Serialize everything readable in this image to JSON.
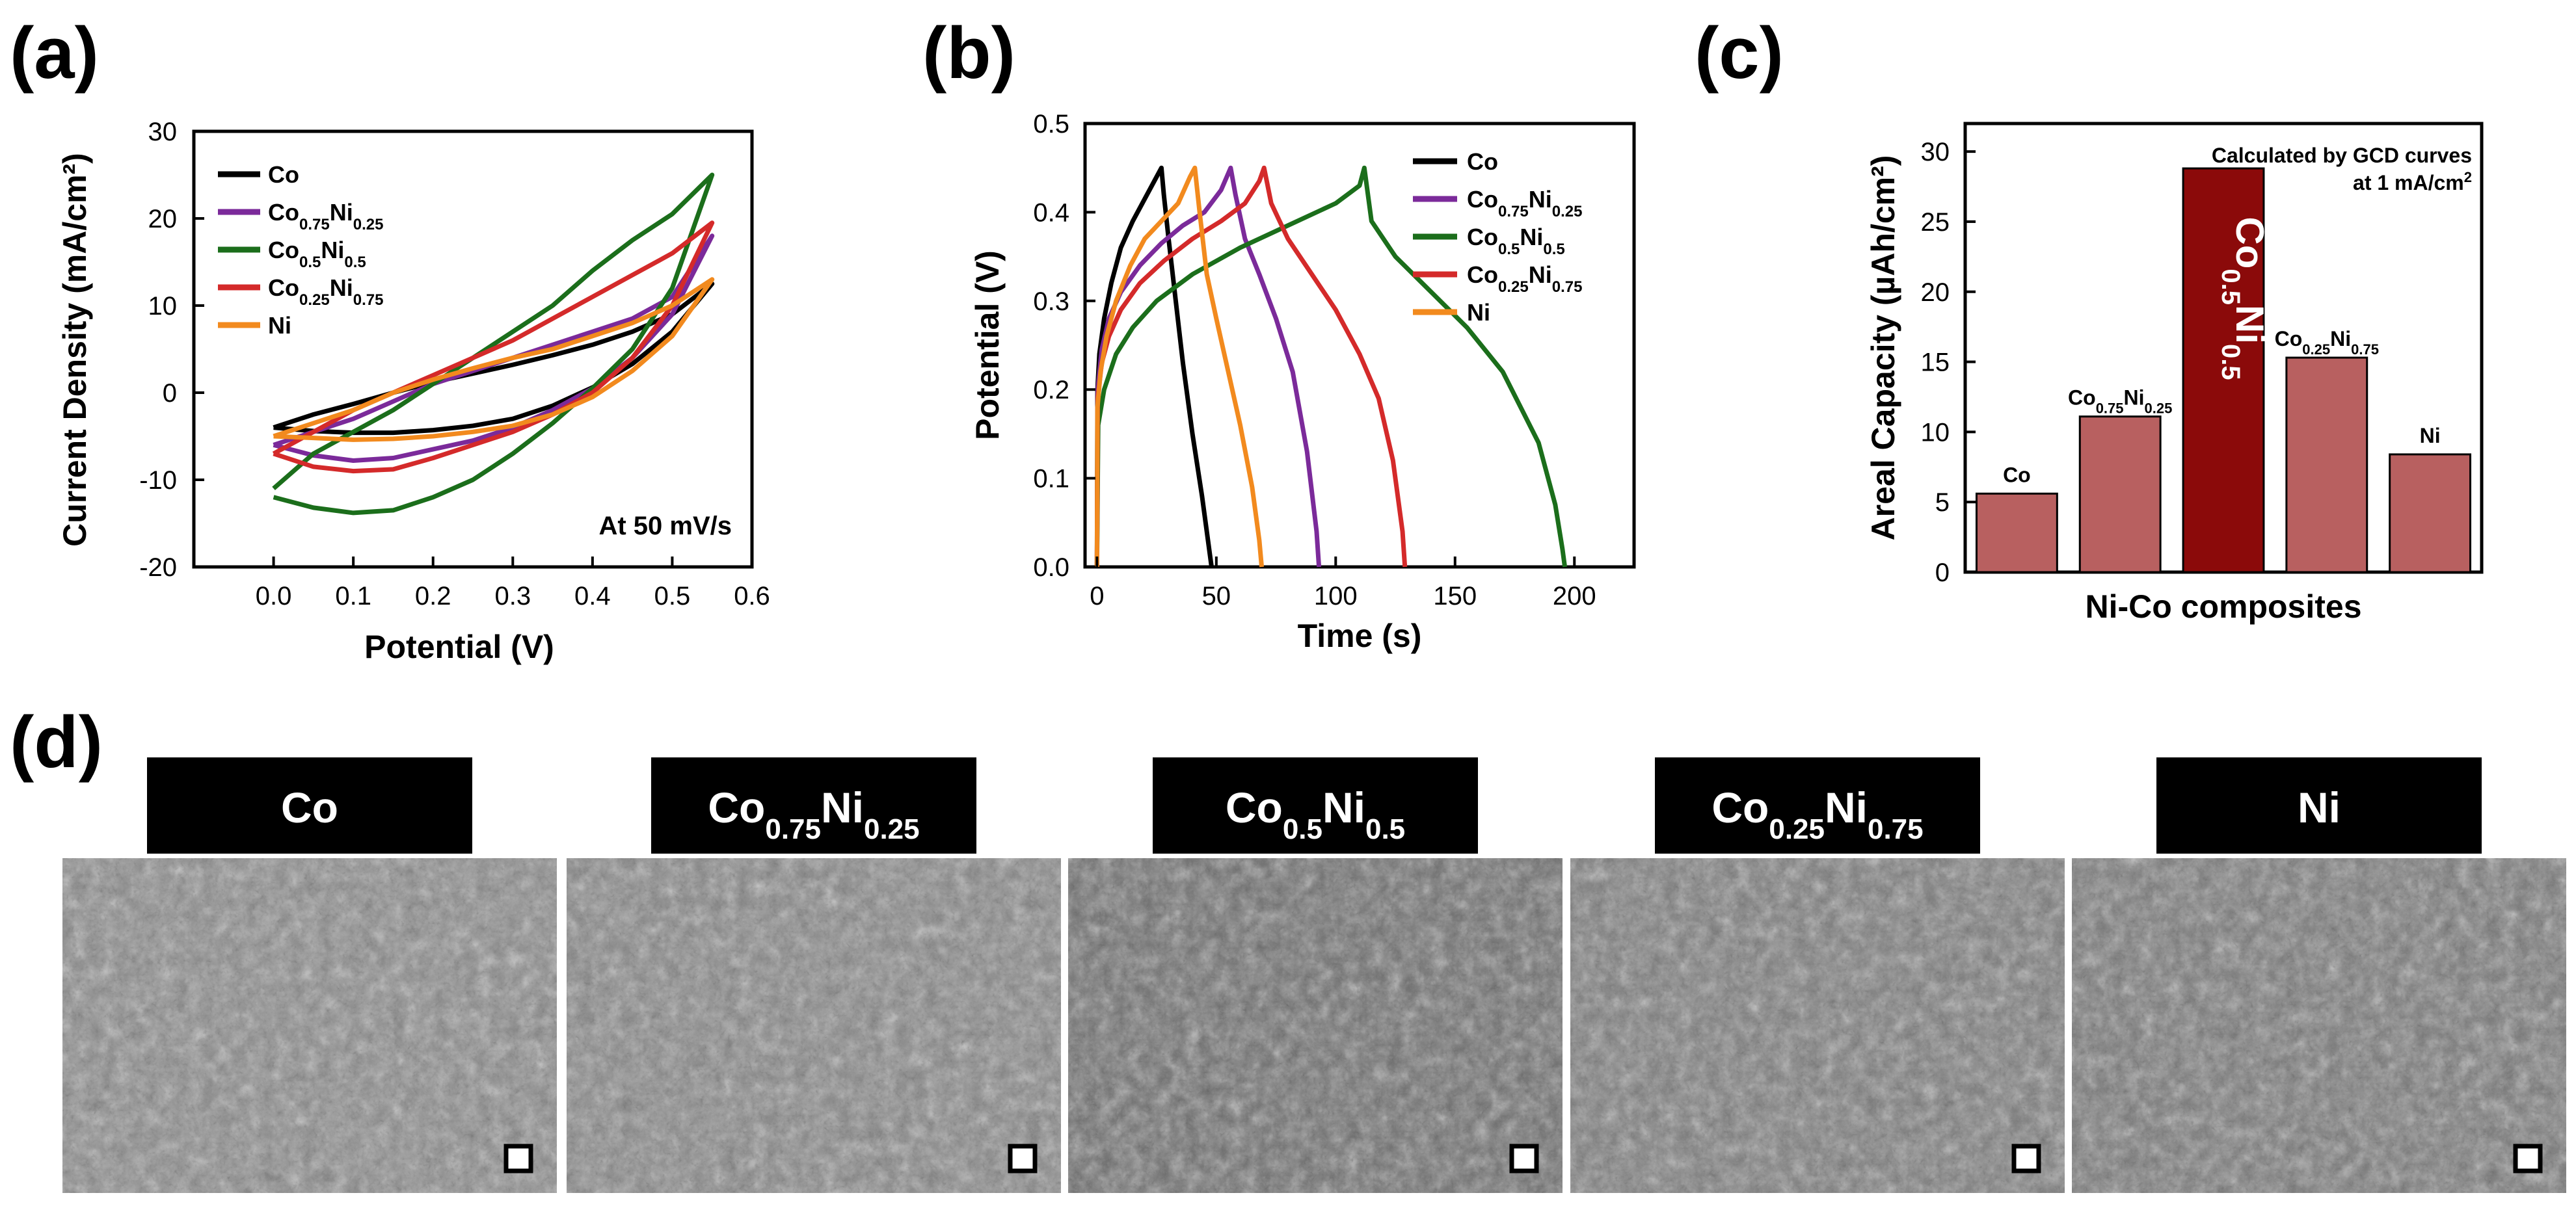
{
  "panels": {
    "a": "(a)",
    "b": "(b)",
    "c": "(c)",
    "d": "(d)"
  },
  "colors": {
    "Co": "#000000",
    "Co0.75Ni0.25": "#7B2A9A",
    "Co0.5Ni0.5": "#1B6E1B",
    "Co0.25Ni0.75": "#D42A2A",
    "Ni": "#F28A1E",
    "bar": "#B86060",
    "bar_highlight": "#8B0A0A",
    "label_box": "#000000",
    "micrograph_base": "#8C8C8C"
  },
  "chart_data": [
    {
      "panel": "a",
      "type": "line",
      "xlabel": "Potential (V)",
      "ylabel": "Current Density (mA/cm²)",
      "xlim": [
        -0.1,
        0.6
      ],
      "ylim": [
        -20,
        30
      ],
      "xticks": [
        0.0,
        0.1,
        0.2,
        0.3,
        0.4,
        0.5,
        0.6
      ],
      "yticks": [
        -20,
        -10,
        0,
        10,
        20,
        30
      ],
      "xtick_labels": [
        "0.0",
        "0.1",
        "0.2",
        "0.3",
        "0.4",
        "0.5",
        "0.6"
      ],
      "ytick_labels": [
        "-20",
        "-10",
        "0",
        "10",
        "20",
        "30"
      ],
      "annotation": "At 50 mV/s",
      "legend_position": "top-left",
      "series": [
        {
          "key": "Co",
          "name": "Co",
          "name_base": "Co",
          "name_sub1": "",
          "name_mid": "",
          "name_sub2": "",
          "x": [
            0.0,
            0.05,
            0.1,
            0.15,
            0.2,
            0.25,
            0.3,
            0.35,
            0.4,
            0.45,
            0.5,
            0.55,
            0.55,
            0.5,
            0.45,
            0.4,
            0.35,
            0.3,
            0.25,
            0.2,
            0.15,
            0.1,
            0.05,
            0.0
          ],
          "y": [
            -4,
            -2.5,
            -1.3,
            0,
            1.2,
            2.2,
            3.2,
            4.3,
            5.5,
            7,
            9,
            12.5,
            12.5,
            7,
            3.3,
            0.6,
            -1.5,
            -3,
            -3.8,
            -4.3,
            -4.6,
            -4.6,
            -4.4,
            -4
          ]
        },
        {
          "key": "Co0.75Ni0.25",
          "name": "Co0.75Ni0.25",
          "name_base": "Co",
          "name_sub1": "0.75",
          "name_mid": "Ni",
          "name_sub2": "0.25",
          "x": [
            0.0,
            0.05,
            0.1,
            0.15,
            0.2,
            0.25,
            0.3,
            0.35,
            0.4,
            0.45,
            0.5,
            0.55,
            0.55,
            0.5,
            0.45,
            0.4,
            0.35,
            0.3,
            0.25,
            0.2,
            0.15,
            0.1,
            0.05,
            0.0
          ],
          "y": [
            -6,
            -4.5,
            -3,
            -1,
            1,
            2.5,
            4,
            5.5,
            7,
            8.5,
            11,
            18,
            18,
            9,
            4,
            0.5,
            -2,
            -4,
            -5.5,
            -6.5,
            -7.5,
            -7.8,
            -7.2,
            -6
          ]
        },
        {
          "key": "Co0.5Ni0.5",
          "name": "Co0.5Ni0.5",
          "name_base": "Co",
          "name_sub1": "0.5",
          "name_mid": "Ni",
          "name_sub2": "0.5",
          "x": [
            0.0,
            0.05,
            0.1,
            0.15,
            0.2,
            0.25,
            0.3,
            0.35,
            0.4,
            0.45,
            0.5,
            0.55,
            0.55,
            0.5,
            0.45,
            0.4,
            0.35,
            0.3,
            0.25,
            0.2,
            0.15,
            0.1,
            0.05,
            0.0
          ],
          "y": [
            -11,
            -7,
            -4.5,
            -2,
            1,
            4,
            7,
            10,
            14,
            17.5,
            20.5,
            25,
            25,
            12,
            5,
            0.5,
            -3.5,
            -7,
            -10,
            -12,
            -13.5,
            -13.8,
            -13.2,
            -12
          ]
        },
        {
          "key": "Co0.25Ni0.75",
          "name": "Co0.25Ni0.75",
          "name_base": "Co",
          "name_sub1": "0.25",
          "name_mid": "Ni",
          "name_sub2": "0.75",
          "x": [
            0.0,
            0.05,
            0.1,
            0.15,
            0.2,
            0.25,
            0.3,
            0.35,
            0.4,
            0.45,
            0.5,
            0.55,
            0.55,
            0.5,
            0.45,
            0.4,
            0.35,
            0.3,
            0.25,
            0.2,
            0.15,
            0.1,
            0.05,
            0.0
          ],
          "y": [
            -7,
            -4.5,
            -2,
            0,
            2,
            4,
            6,
            8.5,
            11,
            13.5,
            16,
            19.5,
            19.5,
            10,
            4,
            0,
            -2.5,
            -4.5,
            -6,
            -7.5,
            -8.8,
            -9,
            -8.5,
            -7
          ]
        },
        {
          "key": "Ni",
          "name": "Ni",
          "name_base": "Ni",
          "name_sub1": "",
          "name_mid": "",
          "name_sub2": "",
          "x": [
            0.0,
            0.05,
            0.1,
            0.15,
            0.2,
            0.25,
            0.3,
            0.35,
            0.4,
            0.45,
            0.5,
            0.55,
            0.55,
            0.5,
            0.45,
            0.4,
            0.35,
            0.3,
            0.25,
            0.2,
            0.15,
            0.1,
            0.05,
            0.0
          ],
          "y": [
            -5,
            -3.5,
            -2,
            0,
            1.5,
            2.8,
            4,
            5,
            6.5,
            8,
            10,
            13,
            13,
            6.5,
            2.5,
            -0.5,
            -2.5,
            -3.8,
            -4.5,
            -5,
            -5.3,
            -5.4,
            -5.2,
            -5
          ]
        }
      ]
    },
    {
      "panel": "b",
      "type": "line",
      "xlabel": "Time (s)",
      "ylabel": "Potential (V)",
      "xlim": [
        -5,
        225
      ],
      "ylim": [
        0.0,
        0.5
      ],
      "xticks": [
        0,
        50,
        100,
        150,
        200
      ],
      "yticks": [
        0.0,
        0.1,
        0.2,
        0.3,
        0.4,
        0.5
      ],
      "xtick_labels": [
        "0",
        "50",
        "100",
        "150",
        "200"
      ],
      "ytick_labels": [
        "0.0",
        "0.1",
        "0.2",
        "0.3",
        "0.4",
        "0.5"
      ],
      "legend_position": "top-right",
      "series": [
        {
          "key": "Co",
          "name": "Co",
          "name_base": "Co",
          "name_sub1": "",
          "name_mid": "",
          "name_sub2": "",
          "x": [
            0,
            0.2,
            1,
            3,
            6,
            10,
            15,
            20,
            25,
            27,
            28,
            30,
            33,
            36,
            40,
            44,
            48
          ],
          "y": [
            0,
            0.2,
            0.24,
            0.28,
            0.32,
            0.36,
            0.39,
            0.415,
            0.44,
            0.45,
            0.42,
            0.37,
            0.3,
            0.23,
            0.15,
            0.08,
            0.0
          ]
        },
        {
          "key": "Co0.75Ni0.25",
          "name": "Co0.75Ni0.25",
          "name_base": "Co",
          "name_sub1": "0.75",
          "name_mid": "Ni",
          "name_sub2": "0.25",
          "x": [
            0,
            0.3,
            2,
            5,
            10,
            18,
            27,
            36,
            45,
            52,
            56,
            58,
            62,
            68,
            75,
            82,
            88,
            92,
            93
          ],
          "y": [
            0,
            0.2,
            0.245,
            0.28,
            0.31,
            0.34,
            0.365,
            0.385,
            0.4,
            0.425,
            0.45,
            0.42,
            0.37,
            0.33,
            0.28,
            0.22,
            0.13,
            0.04,
            0.0
          ]
        },
        {
          "key": "Co0.5Ni0.5",
          "name": "Co0.5Ni0.5",
          "name_base": "Co",
          "name_sub1": "0.5",
          "name_mid": "Ni",
          "name_sub2": "0.5",
          "x": [
            0,
            0.5,
            3,
            8,
            15,
            25,
            40,
            60,
            80,
            100,
            110,
            112,
            115,
            125,
            140,
            155,
            170,
            185,
            192,
            195,
            196
          ],
          "y": [
            0,
            0.16,
            0.2,
            0.24,
            0.27,
            0.3,
            0.33,
            0.36,
            0.385,
            0.41,
            0.43,
            0.45,
            0.39,
            0.35,
            0.31,
            0.27,
            0.22,
            0.14,
            0.07,
            0.02,
            0.0
          ]
        },
        {
          "key": "Co0.25Ni0.75",
          "name": "Co0.25Ni0.75",
          "name_base": "Co",
          "name_sub1": "0.25",
          "name_mid": "Ni",
          "name_sub2": "0.75",
          "x": [
            0,
            0.3,
            2,
            5,
            10,
            18,
            28,
            40,
            52,
            62,
            68,
            70,
            73,
            80,
            90,
            100,
            110,
            118,
            124,
            128,
            129
          ],
          "y": [
            0,
            0.19,
            0.23,
            0.26,
            0.29,
            0.32,
            0.345,
            0.37,
            0.39,
            0.41,
            0.435,
            0.45,
            0.41,
            0.37,
            0.33,
            0.29,
            0.24,
            0.19,
            0.12,
            0.04,
            0.0
          ]
        },
        {
          "key": "Ni",
          "name": "Ni",
          "name_base": "Ni",
          "name_sub1": "",
          "name_mid": "",
          "name_sub2": "",
          "x": [
            0,
            0.2,
            1.5,
            4,
            8,
            14,
            20,
            27,
            34,
            39,
            41,
            43,
            46,
            50,
            55,
            60,
            65,
            68,
            69
          ],
          "y": [
            0,
            0.18,
            0.22,
            0.26,
            0.3,
            0.34,
            0.37,
            0.39,
            0.41,
            0.44,
            0.45,
            0.4,
            0.33,
            0.28,
            0.22,
            0.16,
            0.09,
            0.03,
            0.0
          ]
        }
      ]
    },
    {
      "panel": "c",
      "type": "bar",
      "xlabel": "Ni-Co composites",
      "ylabel": "Areal Capacity (µAh/cm²)",
      "ylim": [
        0,
        32
      ],
      "yticks": [
        0,
        5,
        10,
        15,
        20,
        25,
        30
      ],
      "ytick_labels": [
        "0",
        "5",
        "10",
        "15",
        "20",
        "25",
        "30"
      ],
      "annotation_line1": "Calculated by GCD curves",
      "annotation_line2_base": "at 1 mA/cm",
      "annotation_line2_sup": "2",
      "bars": [
        {
          "name": "Co",
          "label_base": "Co",
          "label_sub1": "",
          "label_mid": "",
          "label_sub2": "",
          "value": 5.6,
          "highlight": false
        },
        {
          "name": "Co0.75Ni0.25",
          "label_base": "Co",
          "label_sub1": "0.75",
          "label_mid": "Ni",
          "label_sub2": "0.25",
          "value": 11.1,
          "highlight": false
        },
        {
          "name": "Co0.5Ni0.5",
          "label_base": "Co",
          "label_sub1": "0.5",
          "label_mid": "Ni",
          "label_sub2": "0.5",
          "value": 28.8,
          "highlight": true
        },
        {
          "name": "Co0.25Ni0.75",
          "label_base": "Co",
          "label_sub1": "0.25",
          "label_mid": "Ni",
          "label_sub2": "0.75",
          "value": 15.3,
          "highlight": false
        },
        {
          "name": "Ni",
          "label_base": "Ni",
          "label_sub1": "",
          "label_mid": "",
          "label_sub2": "",
          "value": 8.4,
          "highlight": false
        }
      ]
    }
  ],
  "micrographs": [
    {
      "base": "Co",
      "sub1": "",
      "mid": "",
      "sub2": "",
      "shade": "#8E8E8E"
    },
    {
      "base": "Co",
      "sub1": "0.75",
      "mid": "Ni",
      "sub2": "0.25",
      "shade": "#8A8A8A"
    },
    {
      "base": "Co",
      "sub1": "0.5",
      "mid": "Ni",
      "sub2": "0.5",
      "shade": "#6E6E6E"
    },
    {
      "base": "Co",
      "sub1": "0.25",
      "mid": "Ni",
      "sub2": "0.75",
      "shade": "#7E7E7E"
    },
    {
      "base": "Ni",
      "sub1": "",
      "mid": "",
      "sub2": "",
      "shade": "#7A7A7A"
    }
  ]
}
